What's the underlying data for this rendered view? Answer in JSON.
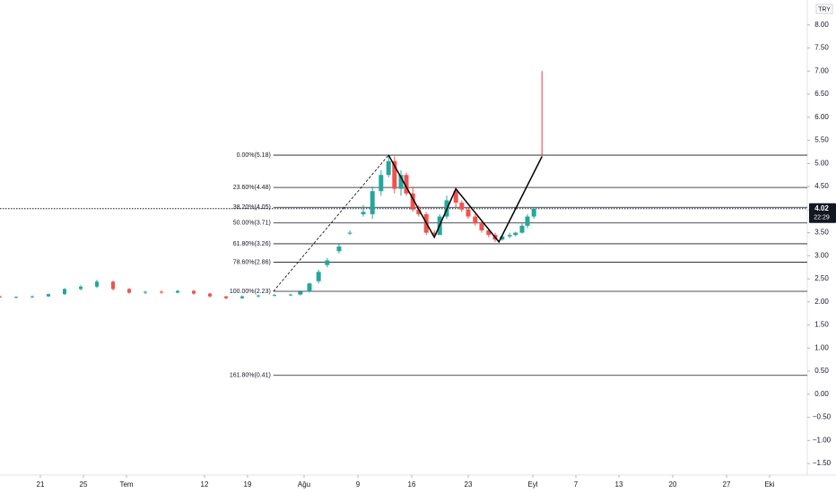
{
  "chart_data": {
    "type": "candlestick",
    "currency": "TRY",
    "xlim": [
      0,
      150
    ],
    "ylim": [
      -1.75,
      8.54
    ],
    "xticks": [
      {
        "value": 7.5,
        "label": "21"
      },
      {
        "value": 15.5,
        "label": "25"
      },
      {
        "value": 23.5,
        "label": "Tem"
      },
      {
        "value": 38,
        "label": "12"
      },
      {
        "value": 46,
        "label": "19"
      },
      {
        "value": 56.5,
        "label": "Ağu"
      },
      {
        "value": 66.5,
        "label": "9"
      },
      {
        "value": 76.5,
        "label": "16"
      },
      {
        "value": 87,
        "label": "23"
      },
      {
        "value": 99,
        "label": "Eyl"
      },
      {
        "value": 107,
        "label": "7"
      },
      {
        "value": 115,
        "label": "13"
      },
      {
        "value": 125,
        "label": "20"
      },
      {
        "value": 135,
        "label": "27"
      },
      {
        "value": 143,
        "label": "Eki"
      }
    ],
    "yticks": [
      {
        "value": 8,
        "label": "8.00"
      },
      {
        "value": 7.5,
        "label": "7.50"
      },
      {
        "value": 7,
        "label": "7.00"
      },
      {
        "value": 6.5,
        "label": "6.50"
      },
      {
        "value": 6,
        "label": "6.00"
      },
      {
        "value": 5.5,
        "label": "5.50"
      },
      {
        "value": 5,
        "label": "5.00"
      },
      {
        "value": 4.5,
        "label": "4.50"
      },
      {
        "value": 4,
        "label": "4.00"
      },
      {
        "value": 3.5,
        "label": "3.50"
      },
      {
        "value": 3,
        "label": "3.00"
      },
      {
        "value": 2.5,
        "label": "2.50"
      },
      {
        "value": 2,
        "label": "2.00"
      },
      {
        "value": 1.5,
        "label": "1.50"
      },
      {
        "value": 1,
        "label": "1.00"
      },
      {
        "value": 0.5,
        "label": "0.50"
      },
      {
        "value": 0,
        "label": "0.00"
      },
      {
        "value": -0.5,
        "label": "−0.50"
      },
      {
        "value": -1,
        "label": "−1.00"
      },
      {
        "value": -1.5,
        "label": "−1.50"
      }
    ],
    "up_color": "#26a69a",
    "down_color": "#ef5350",
    "x": [
      0,
      3,
      6,
      9,
      12,
      15,
      18,
      21,
      24,
      27,
      30,
      33,
      36,
      39,
      42,
      45,
      48,
      51,
      54,
      55.8,
      57.5,
      59.2,
      60.8,
      63,
      65,
      67.5,
      69.2,
      70.8,
      72.2,
      73.3,
      74.5,
      75.5,
      76.7,
      77.8,
      79.2,
      80.7,
      81.7,
      83,
      84.7,
      85.8,
      87,
      88.3,
      89.5,
      90.8,
      92,
      93.3,
      94.7,
      95.8,
      97,
      98,
      99.2
    ],
    "open": [
      2.12,
      2.1,
      2.11,
      2.12,
      2.17,
      2.28,
      2.33,
      2.44,
      2.28,
      2.2,
      2.22,
      2.2,
      2.24,
      2.18,
      2.12,
      2.08,
      2.12,
      2.14,
      2.15,
      2.16,
      2.22,
      2.45,
      2.8,
      3.1,
      3.5,
      3.9,
      3.9,
      4.4,
      4.75,
      5.05,
      4.45,
      4.75,
      4.35,
      4.0,
      3.9,
      3.5,
      3.45,
      3.85,
      4.4,
      4.15,
      4.0,
      3.85,
      3.7,
      3.55,
      3.45,
      3.35,
      3.42,
      3.45,
      3.5,
      3.65,
      3.85
    ],
    "high": [
      2.14,
      2.12,
      2.14,
      2.18,
      2.3,
      2.36,
      2.48,
      2.46,
      2.3,
      2.24,
      2.25,
      2.26,
      2.26,
      2.2,
      2.13,
      2.14,
      2.16,
      2.17,
      2.18,
      2.25,
      2.42,
      2.7,
      2.95,
      3.25,
      3.55,
      4.1,
      4.5,
      4.85,
      5.18,
      5.15,
      4.85,
      4.8,
      4.5,
      4.1,
      3.95,
      3.55,
      3.9,
      4.3,
      4.45,
      4.2,
      4.05,
      3.9,
      3.75,
      3.6,
      3.5,
      3.45,
      3.5,
      3.52,
      3.7,
      3.9,
      4.05
    ],
    "low": [
      2.09,
      2.08,
      2.09,
      2.11,
      2.15,
      2.25,
      2.3,
      2.25,
      2.18,
      2.17,
      2.18,
      2.19,
      2.16,
      2.1,
      2.06,
      2.07,
      2.1,
      2.12,
      2.13,
      2.14,
      2.2,
      2.4,
      2.75,
      3.05,
      3.45,
      3.85,
      3.8,
      4.3,
      4.7,
      4.35,
      4.3,
      4.3,
      3.95,
      3.85,
      3.45,
      3.4,
      3.45,
      3.8,
      4.05,
      3.95,
      3.8,
      3.65,
      3.5,
      3.4,
      3.3,
      3.33,
      3.38,
      3.42,
      3.48,
      3.6,
      3.8
    ],
    "close": [
      2.1,
      2.11,
      2.12,
      2.17,
      2.28,
      2.33,
      2.44,
      2.28,
      2.2,
      2.22,
      2.2,
      2.24,
      2.18,
      2.12,
      2.08,
      2.12,
      2.14,
      2.15,
      2.16,
      2.22,
      2.4,
      2.65,
      2.9,
      3.2,
      3.5,
      3.95,
      4.4,
      4.75,
      5.05,
      4.45,
      4.75,
      4.35,
      4.0,
      3.9,
      3.5,
      3.45,
      3.85,
      4.2,
      4.15,
      4.0,
      3.85,
      3.7,
      3.55,
      3.45,
      3.35,
      3.42,
      3.45,
      3.5,
      3.65,
      3.85,
      4.02
    ],
    "fib_start_x": 50.8,
    "fib_levels": [
      {
        "label": "0.00%(5.18)",
        "value": 5.18
      },
      {
        "label": "23.60%(4.48)",
        "value": 4.48
      },
      {
        "label": "38.20%(4.05)",
        "value": 4.05
      },
      {
        "label": "50.00%(3.71)",
        "value": 3.71
      },
      {
        "label": "61.80%(3.26)",
        "value": 3.26
      },
      {
        "label": "78.60%(2.86)",
        "value": 2.86
      },
      {
        "label": "100.00%(2.23)",
        "value": 2.23
      },
      {
        "label": "161.80%(0.41)",
        "value": 0.41
      }
    ],
    "pattern": {
      "x": [
        72.2,
        80.7,
        84.7,
        92.7,
        100.7
      ],
      "y": [
        5.18,
        3.4,
        4.45,
        3.3,
        5.15
      ],
      "color": "#000000"
    },
    "trend_line": {
      "x": [
        50.8,
        72.2
      ],
      "y": [
        2.23,
        5.18
      ],
      "color": "#000000"
    },
    "spike": {
      "x": [
        100.7,
        100.7
      ],
      "y": [
        5.15,
        7.0
      ],
      "color": "#f23645"
    },
    "last_price": {
      "value": 4.02,
      "time": "22:29"
    }
  }
}
